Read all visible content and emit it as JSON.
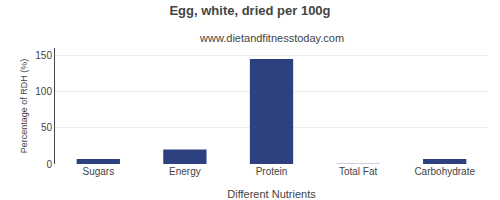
{
  "chart_data": {
    "type": "bar",
    "title": "Egg, white, dried per 100g",
    "subtitle": "www.dietandfitnesstoday.com",
    "xlabel": "Different Nutrients",
    "ylabel": "Percentage of RDH (%)",
    "categories": [
      "Sugars",
      "Energy",
      "Protein",
      "Total Fat",
      "Carbohydrate"
    ],
    "values": [
      7,
      20,
      145,
      0.5,
      7
    ],
    "color": "#2d4080",
    "ylim": [
      0,
      160
    ],
    "yticks": [
      0,
      50,
      100,
      150
    ],
    "grid": true
  }
}
